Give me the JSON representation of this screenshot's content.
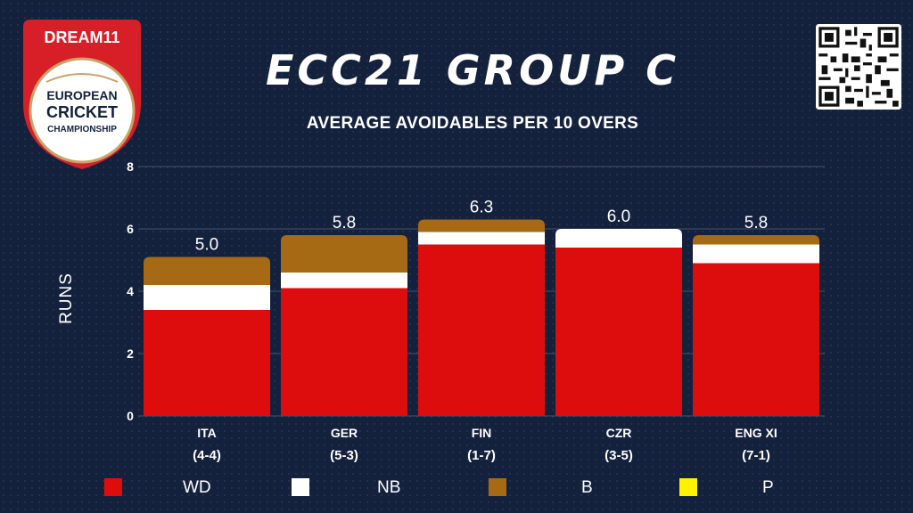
{
  "logo": {
    "brand": "DREAM11",
    "line1": "EUROPEAN",
    "line2": "CRICKET",
    "line3": "CHAMPIONSHIP"
  },
  "title": "ECC21 GROUP C",
  "subtitle": "AVERAGE AVOIDABLES PER 10 OVERS",
  "chart_data": {
    "type": "bar",
    "stacked": true,
    "categories": [
      "ITA",
      "GER",
      "FIN",
      "CZR",
      "ENG XI"
    ],
    "category_sublabels": [
      "(4-4)",
      "(5-3)",
      "(1-7)",
      "(3-5)",
      "(7-1)"
    ],
    "series": [
      {
        "name": "WD",
        "color": "#dd0d0d",
        "values": [
          3.4,
          4.1,
          5.5,
          5.4,
          4.9
        ]
      },
      {
        "name": "NB",
        "color": "#ffffff",
        "values": [
          0.8,
          0.5,
          0.4,
          0.6,
          0.6
        ]
      },
      {
        "name": "B",
        "color": "#a66a14",
        "values": [
          0.9,
          1.2,
          0.4,
          0.0,
          0.3
        ]
      },
      {
        "name": "P",
        "color": "#fff200",
        "values": [
          0.0,
          0.0,
          0.0,
          0.0,
          0.0
        ]
      }
    ],
    "totals": [
      "5.0",
      "5.8",
      "6.3",
      "6.0",
      "5.8"
    ],
    "ylabel": "RUNS",
    "ylim": [
      0,
      8
    ],
    "yticks": [
      0,
      2,
      4,
      6,
      8
    ],
    "grid": true,
    "legend": "bottom"
  }
}
